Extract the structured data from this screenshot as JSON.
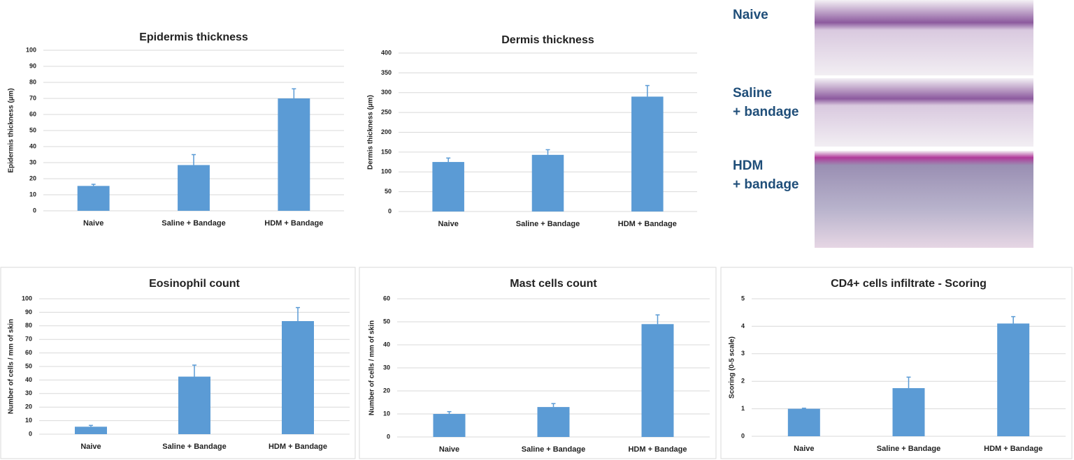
{
  "chart_data": [
    {
      "type": "bar",
      "title": "Epidermis thickness",
      "y_label": "Epidermis thickness (µm)",
      "categories": [
        "Naive",
        "Saline + Bandage",
        "HDM + Bandage"
      ],
      "values": [
        15.5,
        28.5,
        70
      ],
      "errors": [
        1,
        6.5,
        6
      ],
      "color": "#5b9bd5",
      "ylim": [
        0,
        100
      ],
      "yticks": [
        0,
        10,
        20,
        30,
        40,
        50,
        60,
        70,
        80,
        90,
        100
      ],
      "grid": true
    },
    {
      "type": "bar",
      "title": "Dermis thickness",
      "y_label": "Dermis thickness (µm)",
      "categories": [
        "Naive",
        "Saline + Bandage",
        "HDM + Bandage"
      ],
      "values": [
        125,
        143,
        290
      ],
      "errors": [
        10,
        13,
        28
      ],
      "color": "#5b9bd5",
      "ylim": [
        0,
        400
      ],
      "yticks": [
        0,
        50,
        100,
        150,
        200,
        250,
        300,
        350,
        400
      ],
      "grid": true
    },
    {
      "type": "bar",
      "title": "Eosinophil count",
      "y_label": "Number of cells / mm of skin",
      "categories": [
        "Naive",
        "Saline + Bandage",
        "HDM + Bandage"
      ],
      "values": [
        5.5,
        42.5,
        83.5
      ],
      "errors": [
        1,
        8.5,
        10
      ],
      "color": "#5b9bd5",
      "ylim": [
        0,
        100
      ],
      "yticks": [
        0,
        10,
        20,
        30,
        40,
        50,
        60,
        70,
        80,
        90,
        100
      ],
      "grid": true
    },
    {
      "type": "bar",
      "title": "Mast cells count",
      "y_label": "Number of cells / mm of skin",
      "categories": [
        "Naive",
        "Saline + Bandage",
        "HDM + Bandage"
      ],
      "values": [
        10,
        13,
        49
      ],
      "errors": [
        1,
        1.5,
        4
      ],
      "color": "#5b9bd5",
      "ylim": [
        0,
        60
      ],
      "yticks": [
        0,
        10,
        20,
        30,
        40,
        50,
        60
      ],
      "grid": true
    },
    {
      "type": "bar",
      "title": "CD4+ cells infiltrate - Scoring",
      "y_label": "Scoring (0-5 scale)",
      "categories": [
        "Naive",
        "Saline + Bandage",
        "HDM + Bandage"
      ],
      "values": [
        1,
        1.75,
        4.1
      ],
      "errors": [
        0.02,
        0.4,
        0.25
      ],
      "color": "#5b9bd5",
      "ylim": [
        0,
        5
      ],
      "yticks": [
        0,
        1,
        2,
        3,
        4,
        5
      ],
      "grid": true
    }
  ],
  "histology": {
    "labels": [
      [
        "Naive"
      ],
      [
        "Saline",
        "+ bandage"
      ],
      [
        "HDM",
        "+ bandage"
      ]
    ]
  }
}
